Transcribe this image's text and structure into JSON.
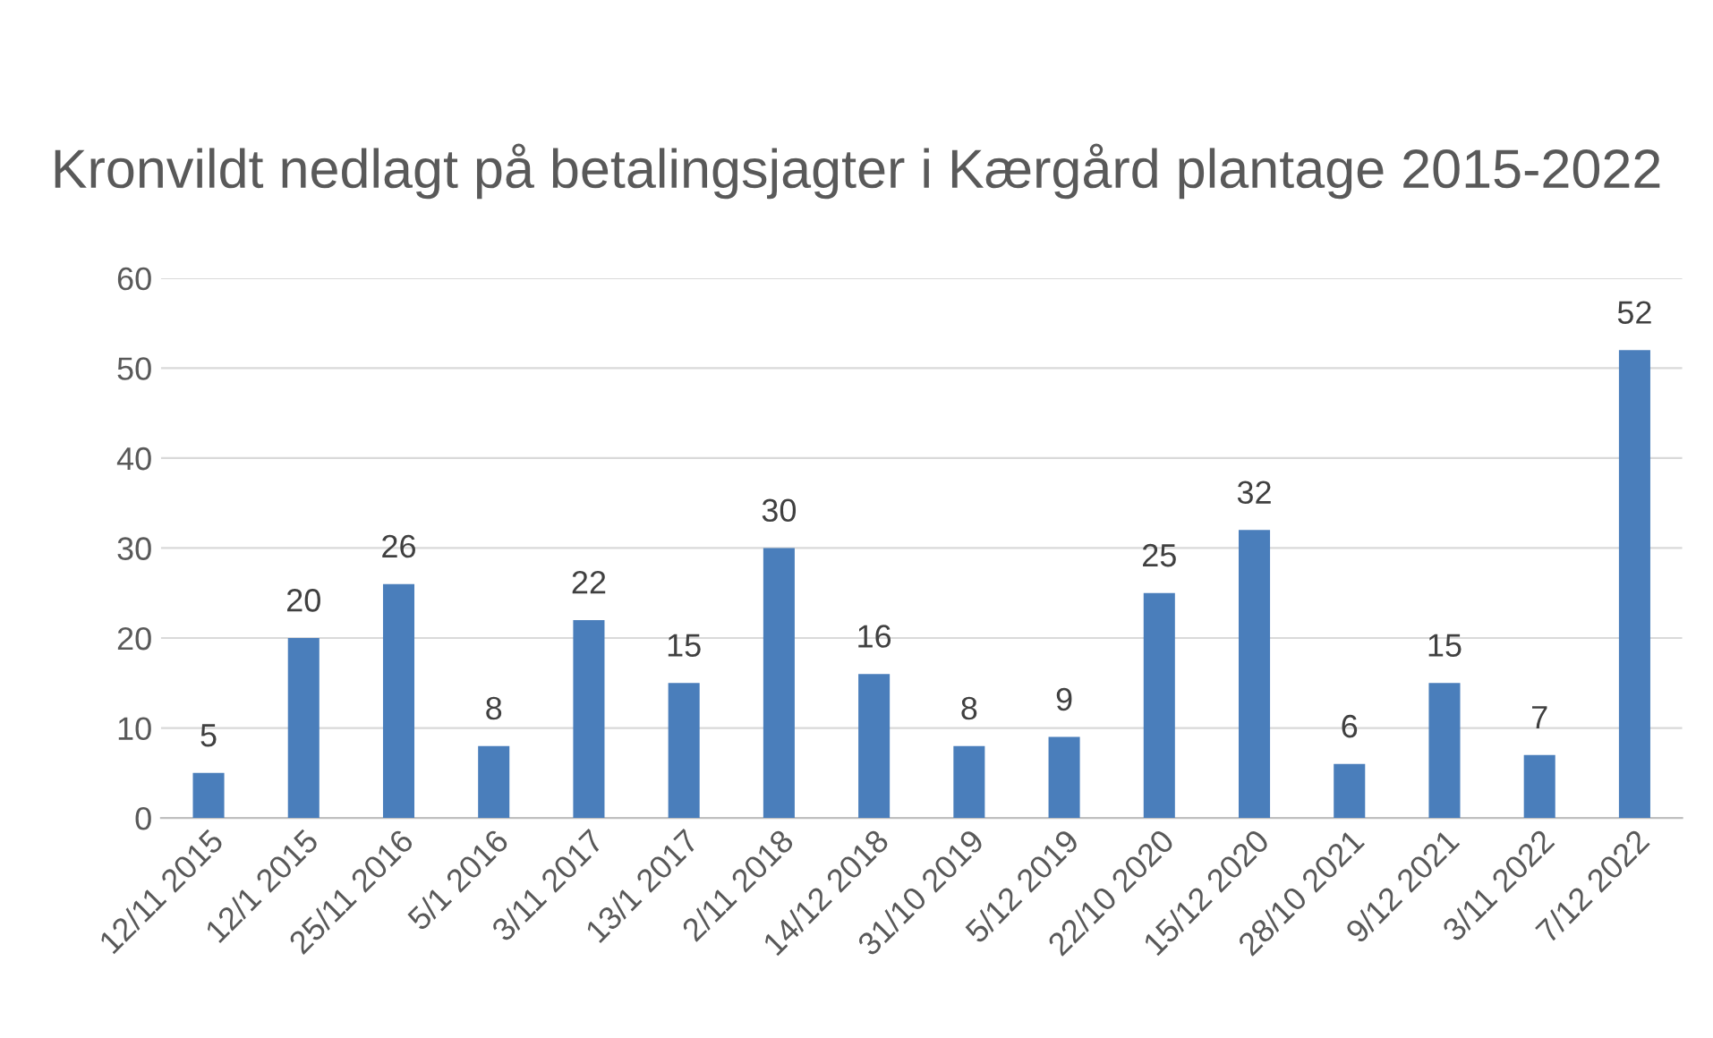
{
  "chart_data": {
    "type": "bar",
    "title": "Kronvildt nedlagt på betalingsjagter i Kærgård plantage 2015-2022",
    "categories": [
      "12/11 2015",
      "12/1 2015",
      "25/11 2016",
      "5/1 2016",
      "3/11 2017",
      "13/1 2017",
      "2/11 2018",
      "14/12 2018",
      "31/10 2019",
      "5/12 2019",
      "22/10 2020",
      "15/12 2020",
      "28/10 2021",
      "9/12 2021",
      "3/11 2022",
      "7/12 2022"
    ],
    "values": [
      5,
      20,
      26,
      8,
      22,
      15,
      30,
      16,
      8,
      9,
      25,
      32,
      6,
      15,
      7,
      52
    ],
    "color": "#4a7ebb",
    "ylim": [
      0,
      60
    ],
    "yticks": [
      0,
      10,
      20,
      30,
      40,
      50,
      60
    ],
    "grid": "y",
    "data_labels": true
  }
}
